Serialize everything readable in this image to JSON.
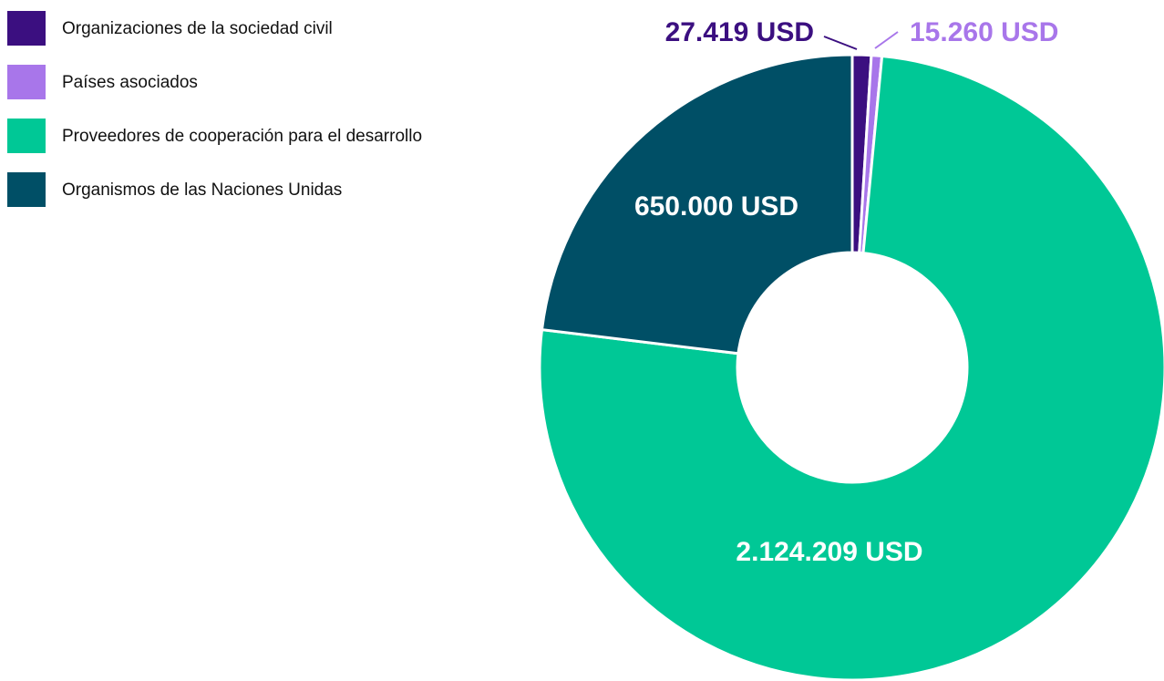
{
  "chart_data": {
    "type": "donut",
    "categories": [
      "Organizaciones de la sociedad civil",
      "Países asociados",
      "Proveedores de cooperación para el desarrollo",
      "Organismos de las Naciones Unidas"
    ],
    "values": [
      27419,
      15260,
      2124209,
      650000
    ],
    "value_labels": [
      "27.419 USD",
      "15.260 USD",
      "2.124.209 USD",
      "650.000 USD"
    ],
    "colors": [
      "#3b0f80",
      "#a876ea",
      "#00c896",
      "#004f66"
    ]
  }
}
